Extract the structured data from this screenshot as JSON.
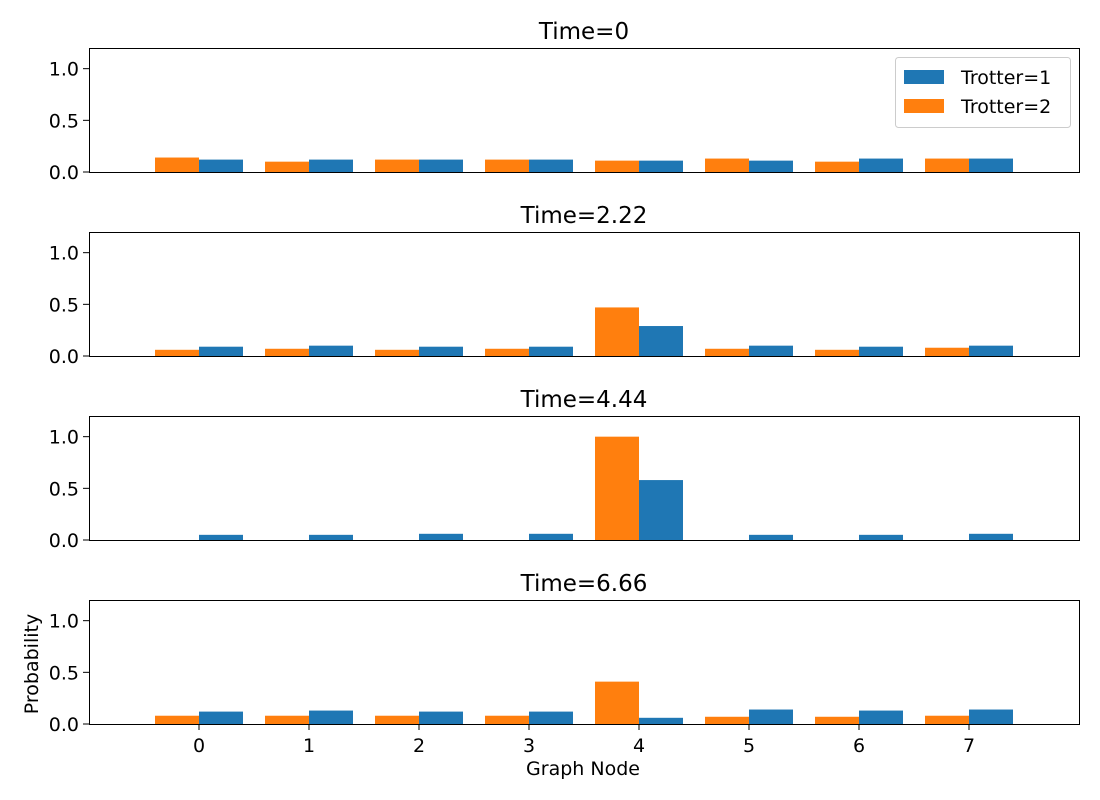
{
  "colors": {
    "trotter1": "#1f77b4",
    "trotter2": "#ff7f0e"
  },
  "chart_data": [
    {
      "type": "bar",
      "title": "Time=0",
      "categories": [
        0,
        1,
        2,
        3,
        4,
        5,
        6,
        7
      ],
      "ylim": [
        0,
        1.2
      ],
      "yticks": [
        0.0,
        0.5,
        1.0
      ],
      "ytick_labels": [
        "0.0",
        "0.5",
        "1.0"
      ],
      "legend": "top-right",
      "series": [
        {
          "name": "Trotter=1",
          "color": "#1f77b4",
          "values": [
            0.12,
            0.12,
            0.12,
            0.12,
            0.11,
            0.11,
            0.13,
            0.13
          ]
        },
        {
          "name": "Trotter=2",
          "color": "#ff7f0e",
          "values": [
            0.14,
            0.1,
            0.12,
            0.12,
            0.11,
            0.13,
            0.1,
            0.13
          ]
        }
      ]
    },
    {
      "type": "bar",
      "title": "Time=2.22",
      "categories": [
        0,
        1,
        2,
        3,
        4,
        5,
        6,
        7
      ],
      "ylim": [
        0,
        1.2
      ],
      "yticks": [
        0.0,
        0.5,
        1.0
      ],
      "ytick_labels": [
        "0.0",
        "0.5",
        "1.0"
      ],
      "series": [
        {
          "name": "Trotter=1",
          "color": "#1f77b4",
          "values": [
            0.09,
            0.1,
            0.09,
            0.09,
            0.29,
            0.1,
            0.09,
            0.1
          ]
        },
        {
          "name": "Trotter=2",
          "color": "#ff7f0e",
          "values": [
            0.06,
            0.07,
            0.06,
            0.07,
            0.47,
            0.07,
            0.06,
            0.08
          ]
        }
      ]
    },
    {
      "type": "bar",
      "title": "Time=4.44",
      "categories": [
        0,
        1,
        2,
        3,
        4,
        5,
        6,
        7
      ],
      "ylim": [
        0,
        1.2
      ],
      "yticks": [
        0.0,
        0.5,
        1.0
      ],
      "ytick_labels": [
        "0.0",
        "0.5",
        "1.0"
      ],
      "series": [
        {
          "name": "Trotter=1",
          "color": "#1f77b4",
          "values": [
            0.05,
            0.05,
            0.06,
            0.06,
            0.58,
            0.05,
            0.05,
            0.06
          ]
        },
        {
          "name": "Trotter=2",
          "color": "#ff7f0e",
          "values": [
            0.0,
            0.0,
            0.0,
            0.0,
            1.0,
            0.0,
            0.0,
            0.0
          ]
        }
      ]
    },
    {
      "type": "bar",
      "title": "Time=6.66",
      "categories": [
        0,
        1,
        2,
        3,
        4,
        5,
        6,
        7
      ],
      "xtick_labels": [
        "0",
        "1",
        "2",
        "3",
        "4",
        "5",
        "6",
        "7"
      ],
      "xlabel": "Graph Node",
      "ylabel": "Probability",
      "ylim": [
        0,
        1.2
      ],
      "yticks": [
        0.0,
        0.5,
        1.0
      ],
      "ytick_labels": [
        "0.0",
        "0.5",
        "1.0"
      ],
      "series": [
        {
          "name": "Trotter=1",
          "color": "#1f77b4",
          "values": [
            0.12,
            0.13,
            0.12,
            0.12,
            0.06,
            0.14,
            0.13,
            0.14
          ]
        },
        {
          "name": "Trotter=2",
          "color": "#ff7f0e",
          "values": [
            0.08,
            0.08,
            0.08,
            0.08,
            0.41,
            0.07,
            0.07,
            0.08
          ]
        }
      ]
    }
  ]
}
